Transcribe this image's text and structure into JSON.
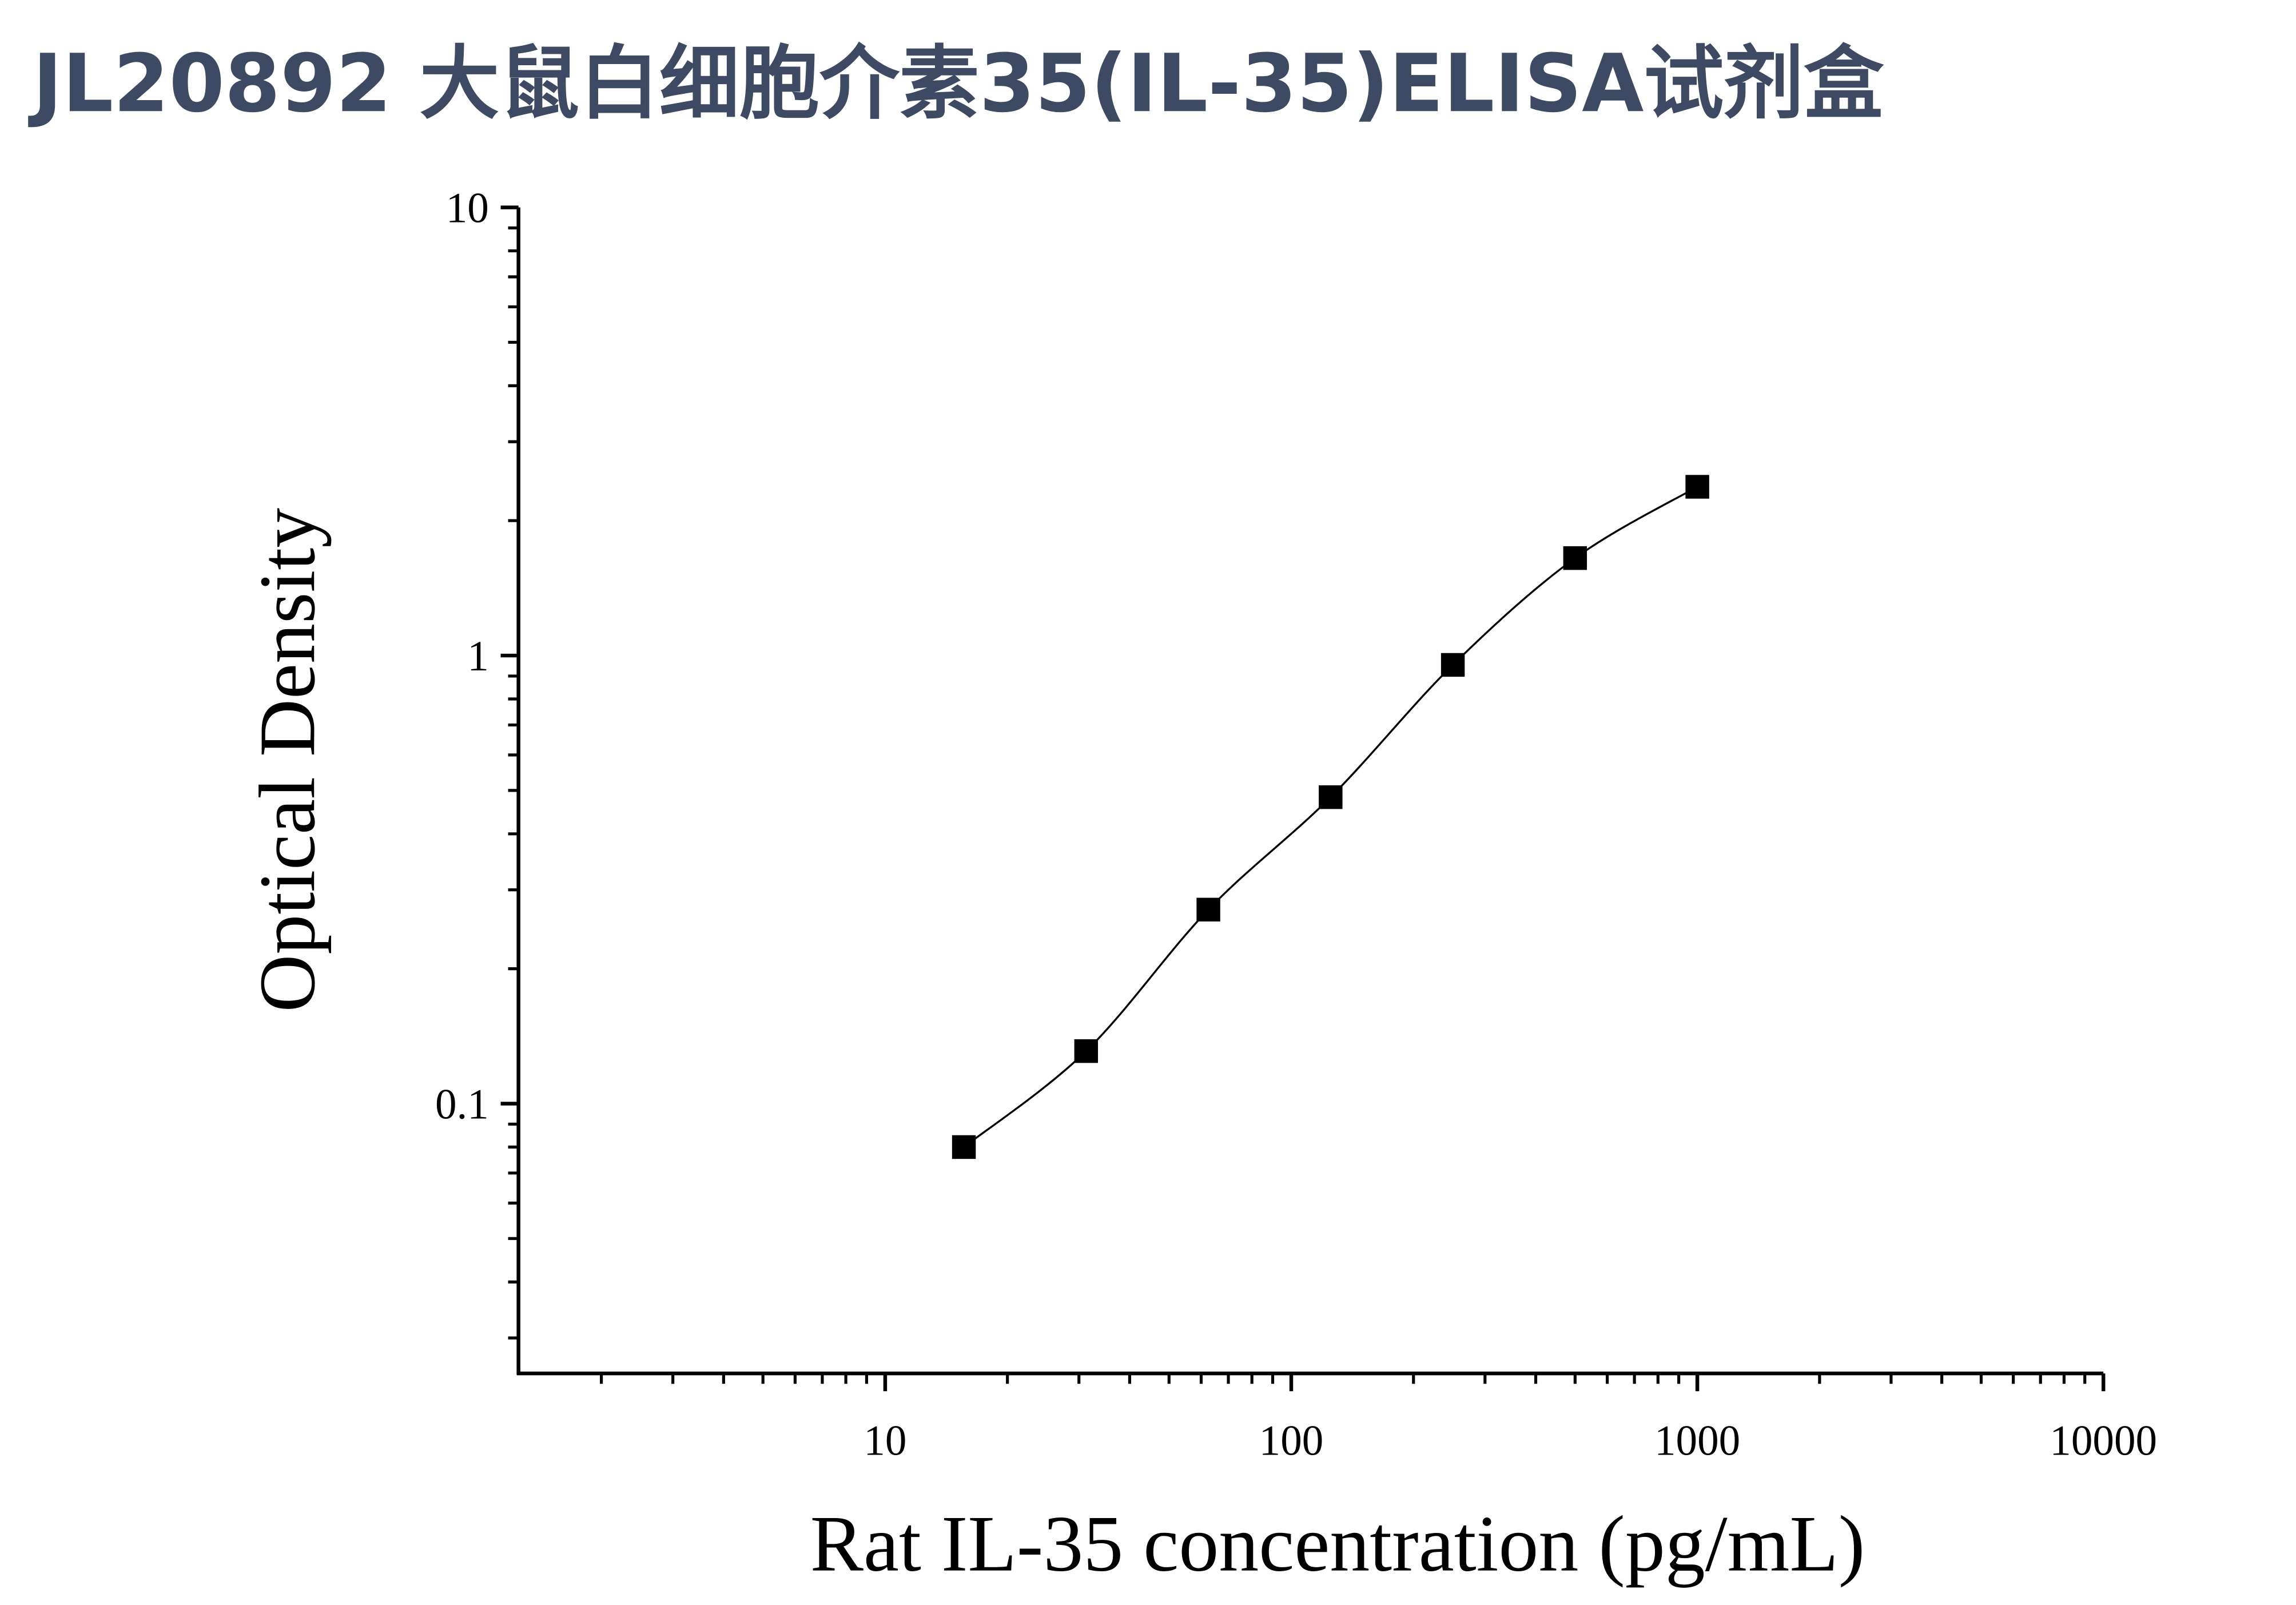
{
  "chart_data": {
    "type": "scatter",
    "title": "JL20892 大鼠白细胞介素35(IL-35)ELISA试剂盒",
    "x_label": "Rat IL-35 concentration (pg/mL)",
    "y_label": "Optical Density",
    "x_scale": "log",
    "y_scale": "log",
    "xlim": [
      1.25,
      10000
    ],
    "ylim": [
      0.025,
      10
    ],
    "xticks": [
      10,
      100,
      1000,
      10000
    ],
    "yticks": [
      0.1,
      1,
      10
    ],
    "xminorticks": [
      2,
      3,
      4,
      5,
      6,
      7,
      8,
      9,
      20,
      30,
      40,
      50,
      60,
      70,
      80,
      90,
      200,
      300,
      400,
      500,
      600,
      700,
      800,
      900,
      2000,
      3000,
      4000,
      5000,
      6000,
      7000,
      8000,
      9000
    ],
    "yminorticks": [
      0.03,
      0.04,
      0.05,
      0.06,
      0.07,
      0.08,
      0.09,
      0.2,
      0.3,
      0.4,
      0.5,
      0.6,
      0.7,
      0.8,
      0.9,
      2,
      3,
      4,
      5,
      6,
      7,
      8,
      9
    ],
    "x": [
      15.625,
      31.25,
      62.5,
      125,
      250,
      500,
      1000
    ],
    "series": [
      {
        "color": "#000000",
        "values": [
          0.08,
          0.131,
          0.271,
          0.483,
          0.953,
          1.65,
          2.38
        ]
      }
    ],
    "fit_curve": true
  }
}
